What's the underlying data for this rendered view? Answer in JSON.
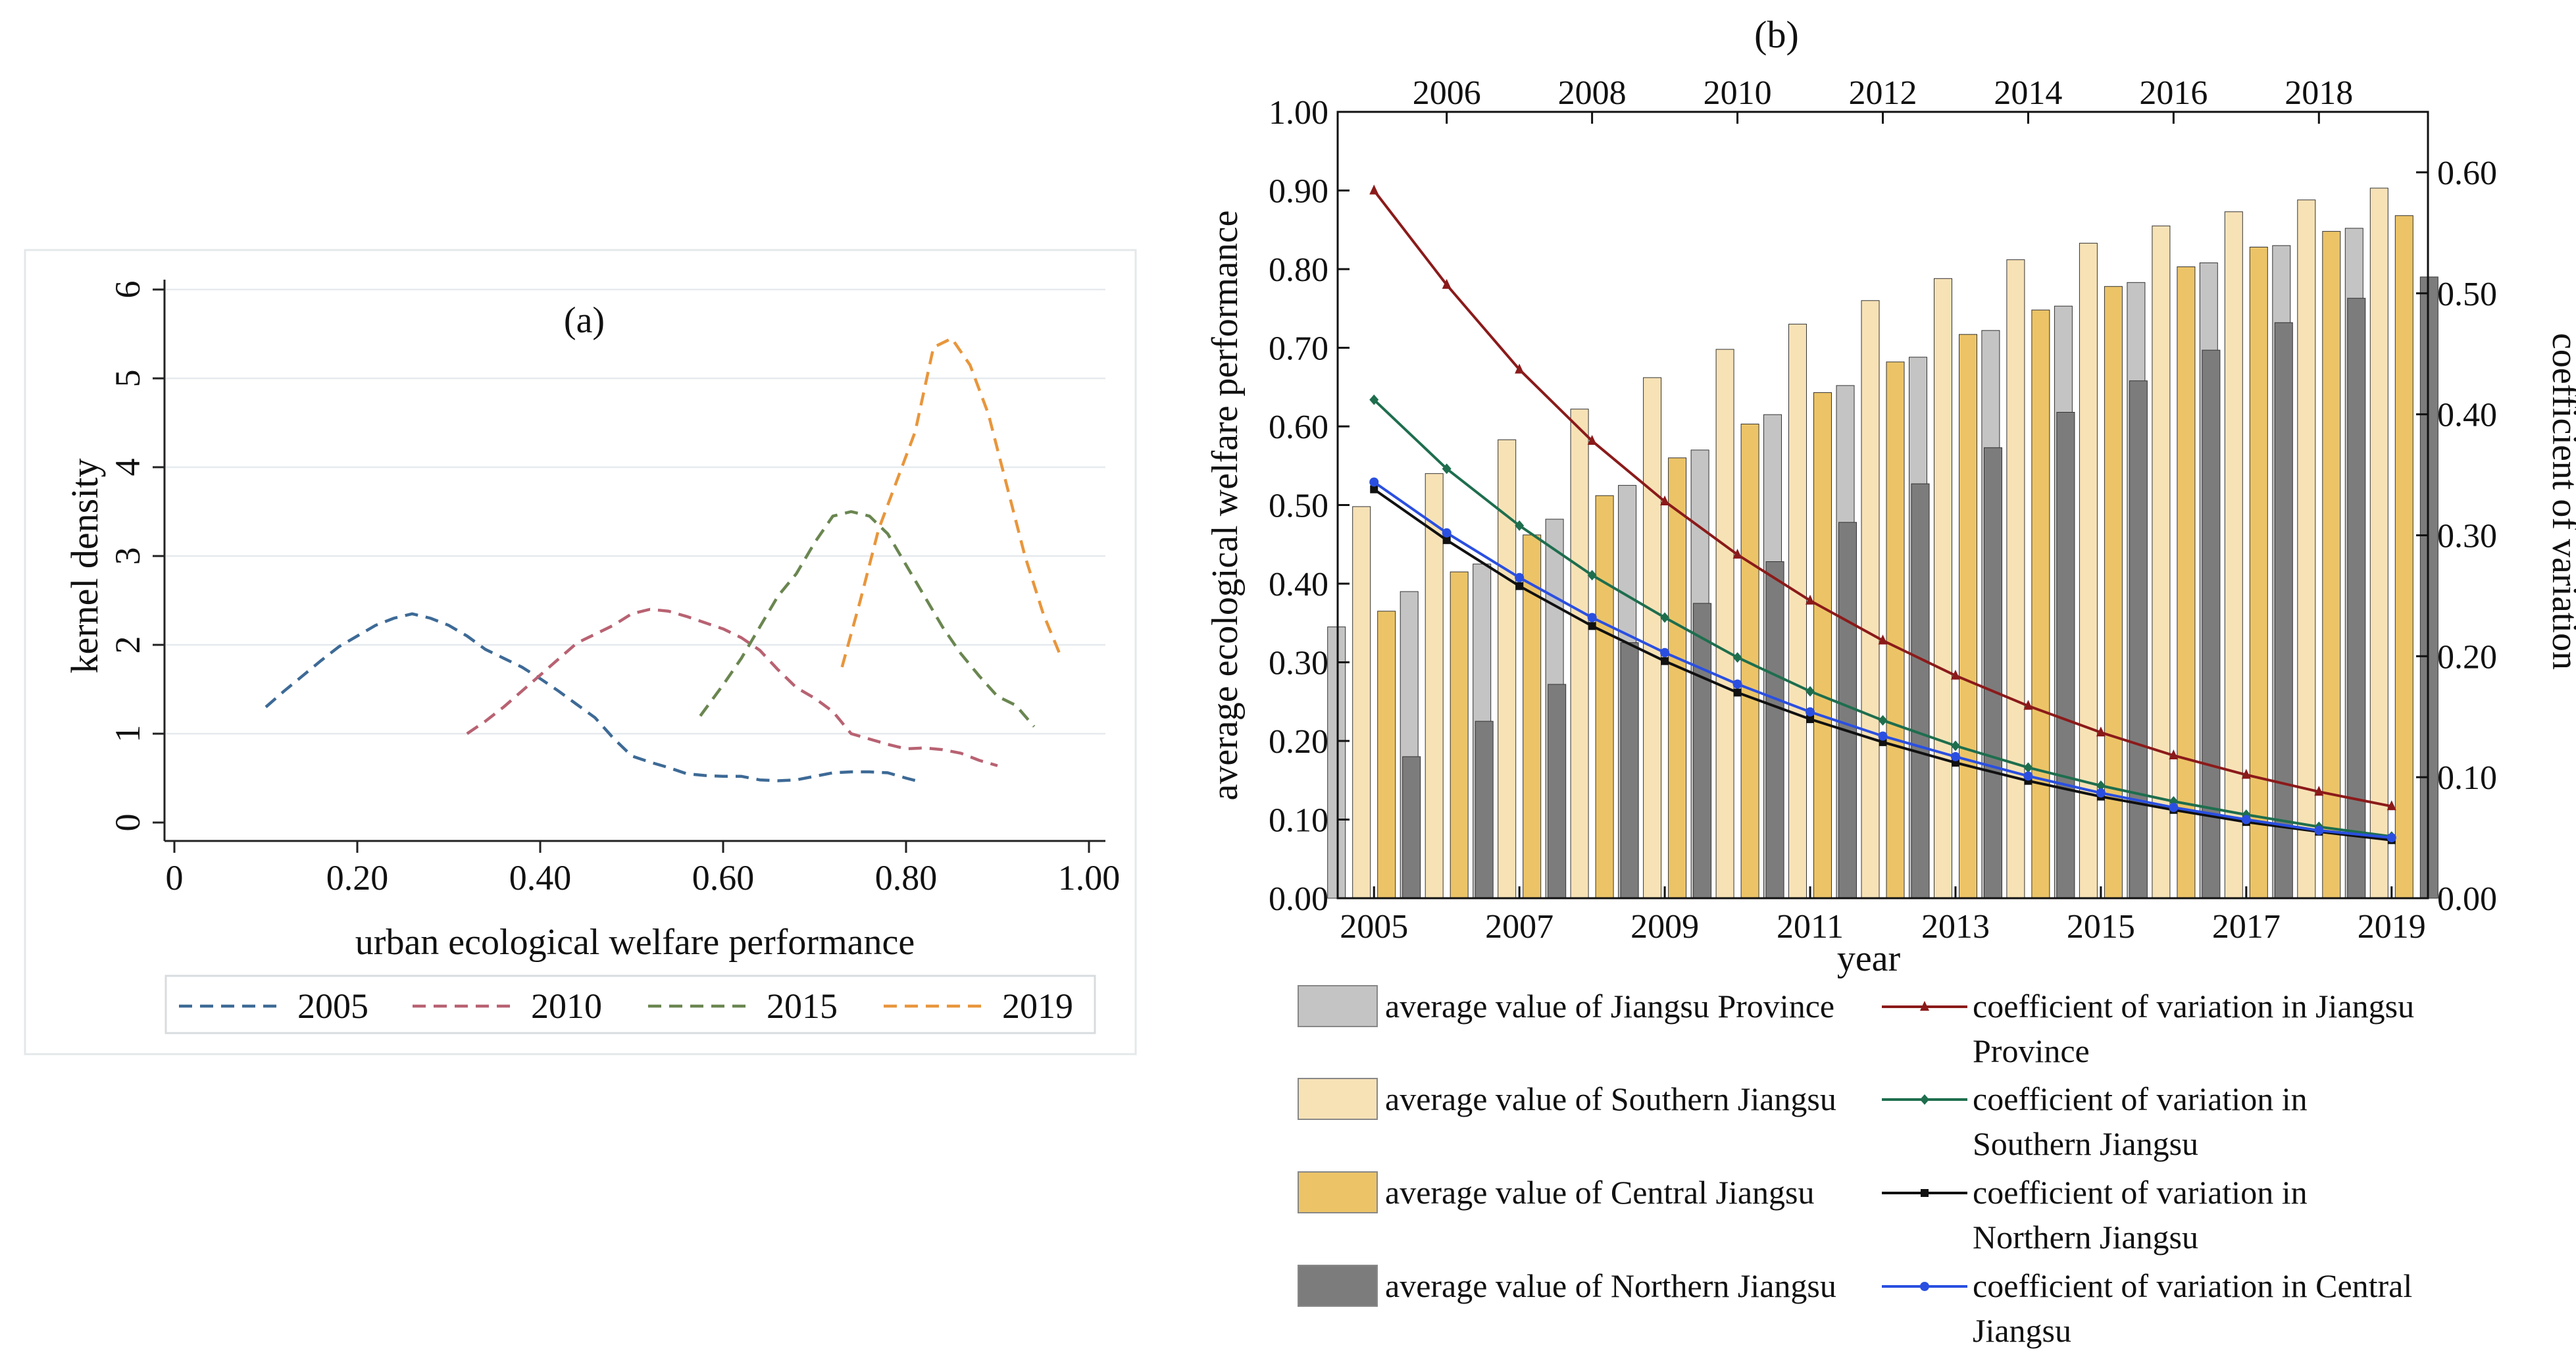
{
  "chart_data": [
    {
      "type": "line",
      "title": "(a)",
      "xlabel": "urban ecological welfare performance",
      "ylabel": "kernel density",
      "xlim": [
        0,
        1.0
      ],
      "ylim": [
        0,
        6
      ],
      "x_ticks": [
        "0",
        "0.20",
        "0.40",
        "0.60",
        "0.80",
        "1.00"
      ],
      "y_ticks": [
        "0",
        "1",
        "2",
        "3",
        "4",
        "5",
        "6"
      ],
      "grid": true,
      "legend_position": "bottom",
      "series": [
        {
          "name": "2005",
          "color": "#3d6a96",
          "x": [
            0.1,
            0.12,
            0.14,
            0.16,
            0.18,
            0.2,
            0.22,
            0.24,
            0.26,
            0.28,
            0.3,
            0.32,
            0.34,
            0.36,
            0.38,
            0.4,
            0.42,
            0.44,
            0.46,
            0.48,
            0.5,
            0.52,
            0.54,
            0.56,
            0.58,
            0.6,
            0.62,
            0.64,
            0.66,
            0.68,
            0.7,
            0.72,
            0.74,
            0.76,
            0.78,
            0.8,
            0.815
          ],
          "y": [
            1.3,
            1.48,
            1.65,
            1.82,
            1.98,
            2.1,
            2.22,
            2.3,
            2.35,
            2.3,
            2.22,
            2.1,
            1.95,
            1.85,
            1.75,
            1.62,
            1.48,
            1.33,
            1.18,
            0.95,
            0.75,
            0.68,
            0.62,
            0.55,
            0.53,
            0.52,
            0.52,
            0.48,
            0.47,
            0.48,
            0.52,
            0.56,
            0.57,
            0.57,
            0.56,
            0.5,
            0.46
          ]
        },
        {
          "name": "2010",
          "color": "#b86272",
          "x": [
            0.32,
            0.34,
            0.36,
            0.38,
            0.4,
            0.42,
            0.44,
            0.46,
            0.48,
            0.5,
            0.52,
            0.54,
            0.56,
            0.58,
            0.6,
            0.62,
            0.64,
            0.66,
            0.68,
            0.7,
            0.72,
            0.74,
            0.76,
            0.78,
            0.8,
            0.82,
            0.84,
            0.86,
            0.88,
            0.9
          ],
          "y": [
            1.0,
            1.14,
            1.3,
            1.48,
            1.66,
            1.84,
            2.02,
            2.12,
            2.22,
            2.35,
            2.4,
            2.38,
            2.32,
            2.25,
            2.18,
            2.08,
            1.94,
            1.72,
            1.52,
            1.4,
            1.25,
            1.0,
            0.94,
            0.88,
            0.83,
            0.84,
            0.82,
            0.78,
            0.7,
            0.64
          ]
        },
        {
          "name": "2015",
          "color": "#6a8650",
          "x": [
            0.575,
            0.6,
            0.62,
            0.64,
            0.66,
            0.68,
            0.7,
            0.72,
            0.74,
            0.76,
            0.78,
            0.8,
            0.82,
            0.84,
            0.86,
            0.88,
            0.9,
            0.92,
            0.94
          ],
          "y": [
            1.2,
            1.55,
            1.85,
            2.2,
            2.55,
            2.8,
            3.15,
            3.45,
            3.5,
            3.45,
            3.25,
            2.9,
            2.55,
            2.2,
            1.9,
            1.65,
            1.42,
            1.32,
            1.08
          ]
        },
        {
          "name": "2019",
          "color": "#e8963c",
          "x": [
            0.73,
            0.75,
            0.77,
            0.79,
            0.81,
            0.83,
            0.85,
            0.87,
            0.89,
            0.91,
            0.93,
            0.95,
            0.97
          ],
          "y": [
            1.75,
            2.5,
            3.3,
            3.85,
            4.4,
            5.35,
            5.45,
            5.15,
            4.6,
            3.8,
            3.0,
            2.35,
            1.85
          ]
        }
      ]
    },
    {
      "type": "bar",
      "title": "(b)",
      "xlabel": "year",
      "ylabel": "average ecological welfare performance",
      "y2label": "coefficient of variation",
      "ylim": [
        0,
        1.0
      ],
      "y2lim": [
        0,
        0.65
      ],
      "categories": [
        "2005",
        "2006",
        "2007",
        "2008",
        "2009",
        "2010",
        "2011",
        "2012",
        "2013",
        "2014",
        "2015",
        "2016",
        "2017",
        "2018",
        "2019"
      ],
      "bottom_ticks": [
        "2005",
        "2007",
        "2009",
        "2011",
        "2013",
        "2015",
        "2017",
        "2019"
      ],
      "top_ticks": [
        "2006",
        "2008",
        "2010",
        "2012",
        "2014",
        "2016",
        "2018"
      ],
      "y_ticks": [
        "0.00",
        "0.10",
        "0.20",
        "0.30",
        "0.40",
        "0.50",
        "0.60",
        "0.70",
        "0.80",
        "0.90",
        "1.00"
      ],
      "y2_ticks": [
        "0.00",
        "0.10",
        "0.20",
        "0.30",
        "0.40",
        "0.50",
        "0.60"
      ],
      "series": [
        {
          "name": "average value of Jiangsu Province",
          "color": "#c4c4c4",
          "values": [
            0.345,
            0.39,
            0.425,
            0.482,
            0.525,
            0.57,
            0.615,
            0.652,
            0.688,
            0.722,
            0.753,
            0.783,
            0.808,
            0.83,
            0.852
          ]
        },
        {
          "name": "average value of Southern Jiangsu",
          "color": "#f7e2b6",
          "values": [
            0.498,
            0.54,
            0.583,
            0.622,
            0.662,
            0.698,
            0.73,
            0.76,
            0.788,
            0.812,
            0.833,
            0.855,
            0.873,
            0.888,
            0.903
          ]
        },
        {
          "name": "average value of Central Jiangsu",
          "color": "#ecc467",
          "values": [
            0.365,
            0.415,
            0.462,
            0.512,
            0.56,
            0.603,
            0.643,
            0.682,
            0.717,
            0.748,
            0.778,
            0.803,
            0.828,
            0.848,
            0.868
          ]
        },
        {
          "name": "average value of Northern Jiangsu",
          "color": "#7c7c7c",
          "values": [
            0.18,
            0.225,
            0.272,
            0.325,
            0.375,
            0.428,
            0.478,
            0.527,
            0.573,
            0.618,
            0.658,
            0.697,
            0.732,
            0.763,
            0.79
          ]
        }
      ],
      "lines": [
        {
          "name": "coefficient of variation in Jiangsu Province",
          "color": "#8b1a1a",
          "marker": "triangle",
          "values": [
            0.585,
            0.507,
            0.437,
            0.378,
            0.328,
            0.284,
            0.246,
            0.213,
            0.184,
            0.159,
            0.137,
            0.118,
            0.102,
            0.088,
            0.076
          ]
        },
        {
          "name": "coefficient of variation in Southern Jiangsu",
          "color": "#1e6e4e",
          "marker": "diamond",
          "values": [
            0.412,
            0.355,
            0.308,
            0.267,
            0.232,
            0.199,
            0.171,
            0.147,
            0.126,
            0.108,
            0.093,
            0.08,
            0.069,
            0.059,
            0.051
          ]
        },
        {
          "name": "coefficient of variation in Northern Jiangsu",
          "color": "#111111",
          "marker": "square",
          "values": [
            0.338,
            0.296,
            0.258,
            0.225,
            0.196,
            0.17,
            0.148,
            0.129,
            0.112,
            0.097,
            0.084,
            0.073,
            0.063,
            0.055,
            0.048
          ]
        },
        {
          "name": "coefficient of variation in Central Jiangsu",
          "color": "#2a4fe0",
          "marker": "circle",
          "values": [
            0.344,
            0.302,
            0.265,
            0.232,
            0.203,
            0.177,
            0.154,
            0.134,
            0.117,
            0.101,
            0.087,
            0.075,
            0.065,
            0.056,
            0.05
          ]
        }
      ],
      "legend_position": "bottom",
      "legend_rows": [
        {
          "bar_label": "average value of Jiangsu Province",
          "line_label": [
            "coefficient of variation in Jiangsu",
            "Province"
          ]
        },
        {
          "bar_label": "average value of Southern Jiangsu",
          "line_label": [
            "coefficient of variation in",
            "Southern Jiangsu"
          ]
        },
        {
          "bar_label": "average value of Central Jiangsu",
          "line_label": [
            "coefficient of variation in",
            "Northern Jiangsu"
          ]
        },
        {
          "bar_label": "average value of Northern Jiangsu",
          "line_label": [
            "coefficient of variation in Central",
            "Jiangsu"
          ]
        }
      ]
    }
  ]
}
